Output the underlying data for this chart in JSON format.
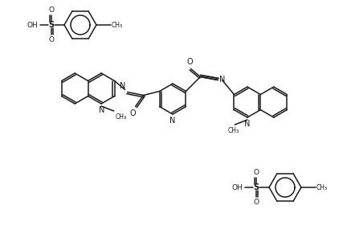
{
  "bg_color": "#ffffff",
  "line_color": "#1a1a1a",
  "line_width": 1.1,
  "figsize": [
    4.37,
    2.86
  ],
  "dpi": 100,
  "xlim": [
    0,
    437
  ],
  "ylim": [
    0,
    286
  ]
}
